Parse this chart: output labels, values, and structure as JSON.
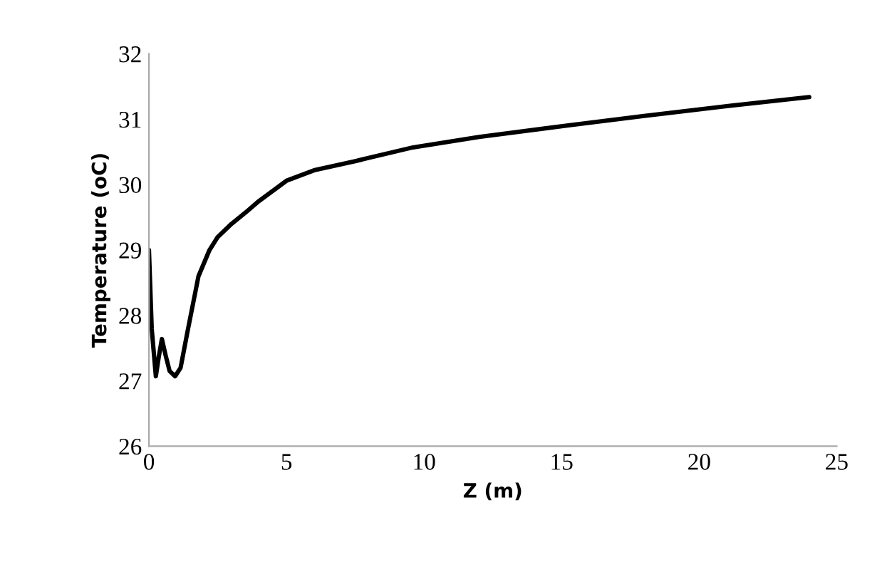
{
  "chart_data": {
    "type": "line",
    "xlabel": "Z (m)",
    "ylabel": "Temperature (oC)",
    "series": [
      {
        "color": "#000000",
        "x": [
          0,
          0.1,
          0.25,
          0.35,
          0.47,
          0.6,
          0.75,
          0.95,
          1.15,
          1.4,
          1.8,
          2.2,
          2.5,
          3,
          3.5,
          4,
          5,
          6,
          7.5,
          9.6,
          12,
          15.3,
          18,
          21,
          24
        ],
        "values": [
          29.0,
          27.8,
          27.07,
          27.35,
          27.64,
          27.4,
          27.15,
          27.07,
          27.2,
          27.75,
          28.6,
          29.0,
          29.2,
          29.4,
          29.57,
          29.75,
          30.06,
          30.22,
          30.36,
          30.57,
          30.73,
          30.91,
          31.05,
          31.2,
          31.34
        ]
      }
    ],
    "xlim": [
      0,
      25
    ],
    "ylim": [
      26,
      32
    ],
    "xticks": [
      0,
      5,
      10,
      15,
      20,
      25
    ],
    "yticks": [
      26,
      27,
      28,
      29,
      30,
      31,
      32
    ],
    "grid": false,
    "legend": false,
    "marker": "none",
    "line_style": "solid"
  }
}
